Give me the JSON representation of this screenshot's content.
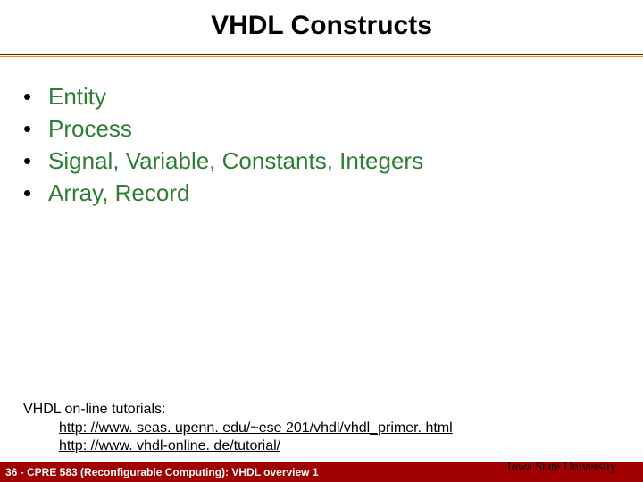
{
  "title": "VHDL Constructs",
  "bullets": [
    "Entity",
    "Process",
    "Signal, Variable, Constants, Integers",
    "Array, Record"
  ],
  "tutorials": {
    "label": "VHDL on-line tutorials:",
    "links": [
      "http: //www. seas. upenn. edu/~ese 201/vhdl/vhdl_primer. html",
      "http: //www. vhdl-online. de/tutorial/"
    ]
  },
  "footer": {
    "left": "36 - CPRE 583 (Reconfigurable Computing):  VHDL overview 1",
    "university": "Iowa State University"
  },
  "colors": {
    "title_text": "#000000",
    "bullet_text": "#2e7d32",
    "divider_primary": "#a00000",
    "divider_secondary": "#d4a000",
    "footer_bg": "#a00000",
    "footer_text": "#ffffff",
    "background": "#ffffff"
  },
  "typography": {
    "title_fontsize": 30,
    "bullet_fontsize": 26,
    "tutorial_fontsize": 16,
    "footer_fontsize": 12,
    "font_family": "Arial"
  }
}
